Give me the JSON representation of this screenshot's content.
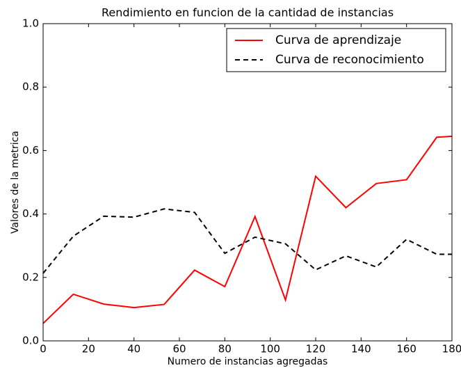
{
  "chart_data": {
    "type": "line",
    "title": "Rendimiento en funcion de la cantidad de instancias",
    "x_label": "Numero de instancias agregadas",
    "y_label": "Valores de la metrica",
    "x": [
      0,
      13.3,
      26.7,
      40,
      53.3,
      66.7,
      80,
      93.3,
      106.7,
      120,
      133.3,
      146.7,
      160,
      173.3,
      180
    ],
    "series": [
      {
        "name": "Curva de aprendizaje",
        "color": "#ff0000",
        "dash": "solid",
        "values": [
          0.055,
          0.147,
          0.116,
          0.105,
          0.115,
          0.223,
          0.171,
          0.392,
          0.129,
          0.519,
          0.42,
          0.496,
          0.508,
          0.642,
          0.645
        ]
      },
      {
        "name": "Curva de reconocimiento",
        "color": "#000000",
        "dash": "dashed",
        "values": [
          0.213,
          0.33,
          0.393,
          0.39,
          0.416,
          0.405,
          0.276,
          0.327,
          0.306,
          0.224,
          0.268,
          0.233,
          0.32,
          0.273,
          0.273
        ]
      }
    ],
    "xlim": [
      0,
      180
    ],
    "xticks": [
      0,
      20,
      40,
      60,
      80,
      100,
      120,
      140,
      160,
      180
    ],
    "ylim": [
      0,
      1
    ],
    "yticks": [
      {
        "value": 0,
        "label": "0.0"
      },
      0.2,
      0.4,
      0.6,
      0.8,
      {
        "value": 1,
        "label": "1.0"
      }
    ],
    "grid": false,
    "legend": "upper right"
  }
}
